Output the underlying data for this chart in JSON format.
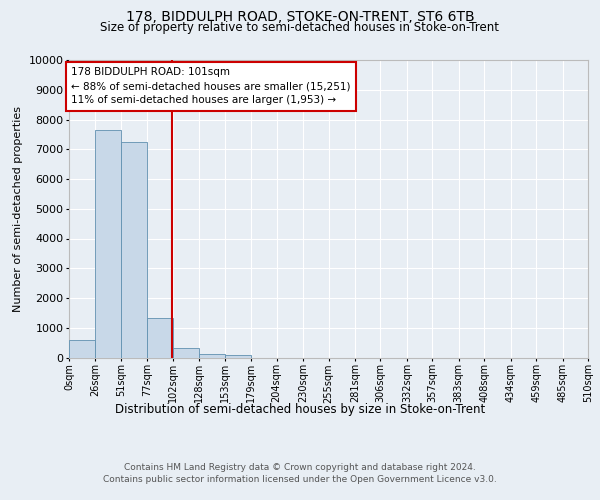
{
  "title": "178, BIDDULPH ROAD, STOKE-ON-TRENT, ST6 6TB",
  "subtitle": "Size of property relative to semi-detached houses in Stoke-on-Trent",
  "xlabel": "Distribution of semi-detached houses by size in Stoke-on-Trent",
  "ylabel": "Number of semi-detached properties",
  "footnote1": "Contains HM Land Registry data © Crown copyright and database right 2024.",
  "footnote2": "Contains public sector information licensed under the Open Government Licence v3.0.",
  "annotation_line1": "178 BIDDULPH ROAD: 101sqm",
  "annotation_line2": "← 88% of semi-detached houses are smaller (15,251)",
  "annotation_line3": "11% of semi-detached houses are larger (1,953) →",
  "property_size": 101,
  "bin_edges": [
    0,
    26,
    51,
    77,
    102,
    128,
    153,
    179,
    204,
    230,
    255,
    281,
    306,
    332,
    357,
    383,
    408,
    434,
    459,
    485,
    510
  ],
  "bar_heights": [
    580,
    7650,
    7250,
    1320,
    310,
    120,
    75,
    0,
    0,
    0,
    0,
    0,
    0,
    0,
    0,
    0,
    0,
    0,
    0,
    0
  ],
  "bar_color": "#c8d8e8",
  "bar_edge_color": "#6090b0",
  "marker_color": "#cc0000",
  "ylim": [
    0,
    10000
  ],
  "yticks": [
    0,
    1000,
    2000,
    3000,
    4000,
    5000,
    6000,
    7000,
    8000,
    9000,
    10000
  ],
  "background_color": "#e8eef4",
  "plot_bg_color": "#e8eef4",
  "annotation_box_color": "#ffffff",
  "annotation_box_edge": "#cc0000"
}
